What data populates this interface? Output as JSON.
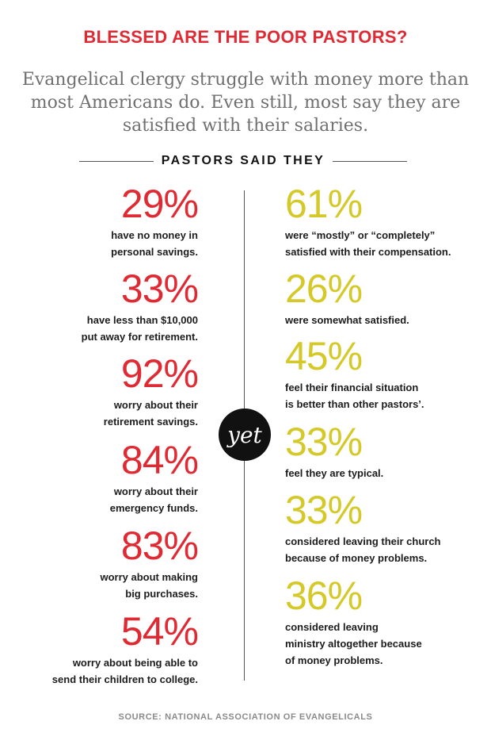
{
  "title": "BLESSED ARE THE POOR PASTORS?",
  "subtitle": "Evangelical clergy struggle with money more than most Americans do. Even still, most say they are satisfied with their salaries.",
  "section_label": "PASTORS SAID THEY",
  "center_badge": "yet",
  "left_stats": [
    {
      "pct": "29%",
      "desc": "have no money in\npersonal savings."
    },
    {
      "pct": "33%",
      "desc": "have less than $10,000\nput away for retirement."
    },
    {
      "pct": "92%",
      "desc": "worry about their\nretirement savings."
    },
    {
      "pct": "84%",
      "desc": "worry about their\nemergency funds."
    },
    {
      "pct": "83%",
      "desc": "worry about making\nbig purchases."
    },
    {
      "pct": "54%",
      "desc": "worry about being able to\nsend their children to college."
    }
  ],
  "right_stats": [
    {
      "pct": "61%",
      "desc": "were “mostly” or “completely”\nsatisfied with their compensation."
    },
    {
      "pct": "26%",
      "desc": "were somewhat satisfied."
    },
    {
      "pct": "45%",
      "desc": "feel their financial situation\nis better than other pastors’."
    },
    {
      "pct": "33%",
      "desc": "feel they are typical."
    },
    {
      "pct": "33%",
      "desc": "considered leaving their church\nbecause of money problems."
    },
    {
      "pct": "36%",
      "desc": "considered leaving\nministry altogether because\nof money problems."
    }
  ],
  "source": "SOURCE: NATIONAL ASSOCIATION OF EVANGELICALS",
  "colors": {
    "accent_red": "#e02a33",
    "accent_yellow": "#d4c928",
    "badge": "#111111"
  }
}
